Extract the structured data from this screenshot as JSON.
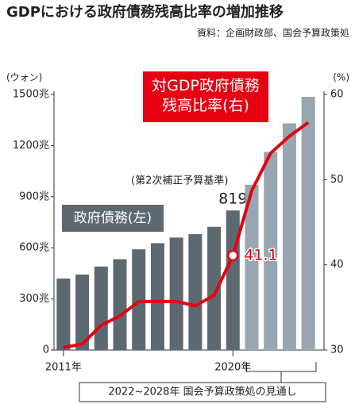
{
  "chart_data": {
    "type": "bar_line",
    "title": "GDPにおける政府債務残高比率の増加推移",
    "source": "資料：企画財政部、国会予算政策処",
    "y_unit": "(ウォン)",
    "y2_unit": "(%)",
    "annotation": "(第2次補正予算基準)",
    "projection_note": "2022~2028年 国会予算政策処の見通し",
    "categories": [
      "2011年",
      null,
      null,
      null,
      null,
      null,
      null,
      null,
      null,
      "2020年",
      null,
      null,
      null,
      null
    ],
    "ylim": [
      0,
      1500
    ],
    "yticks": [
      0,
      {
        "value": 300,
        "label": "300兆"
      },
      {
        "value": 600,
        "label": "600兆"
      },
      {
        "value": 900,
        "label": "900兆"
      },
      {
        "value": 1200,
        "label": "1200兆"
      },
      {
        "value": 1500,
        "label": "1500兆"
      }
    ],
    "y2lim": [
      30,
      60
    ],
    "y2ticks": [
      30,
      40,
      50,
      60
    ],
    "series": [
      {
        "name": "政府債務(左)",
        "type": "bar",
        "color": "#5d6971",
        "colors": [
          "#5d6971",
          "#5d6971",
          "#5d6971",
          "#5d6971",
          "#5d6971",
          "#5d6971",
          "#5d6971",
          "#5d6971",
          "#5d6971",
          "#5d6971",
          "#97a6b0",
          "#97a6b0",
          "#97a6b0",
          "#97a6b0"
        ],
        "values": [
          420,
          443,
          490,
          533,
          591,
          627,
          660,
          680,
          723,
          819,
          970,
          1163,
          1330,
          1486
        ],
        "value_labels": [
          null,
          null,
          null,
          null,
          null,
          null,
          null,
          null,
          null,
          "819",
          null,
          null,
          null,
          null
        ]
      },
      {
        "name": "対GDP政府債務残高比率(右)",
        "type": "line",
        "axis": "y2",
        "color": "#e60012",
        "values": [
          30.3,
          30.7,
          32.9,
          34.0,
          35.7,
          35.7,
          35.7,
          35.2,
          36.4,
          41.1,
          48.7,
          53.1,
          55.1,
          56.7
        ],
        "value_labels": [
          null,
          null,
          null,
          null,
          null,
          null,
          null,
          null,
          null,
          "41.1",
          null,
          null,
          null,
          null
        ]
      }
    ]
  }
}
